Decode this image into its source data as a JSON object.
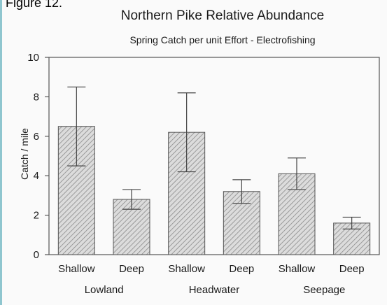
{
  "figure": {
    "label": "Figure 12."
  },
  "colors": {
    "bar_fill": "#dcdcdc",
    "hatch": "#8a8a8a",
    "axis": "#555555",
    "left_rule": "#8fc6cf"
  },
  "chart_data": {
    "type": "bar",
    "title": "Northern Pike Relative Abundance",
    "subtitle": "Spring Catch per unit Effort - Electrofishing",
    "xlabel": "",
    "ylabel": "Catch / mile",
    "ylim": [
      0,
      10
    ],
    "yticks": [
      0,
      2,
      4,
      6,
      8,
      10
    ],
    "grid": false,
    "categories": [
      "Shallow",
      "Deep",
      "Shallow",
      "Deep",
      "Shallow",
      "Deep"
    ],
    "groups": [
      "Lowland",
      "Headwater",
      "Seepage"
    ],
    "values": [
      6.5,
      2.8,
      6.2,
      3.2,
      4.1,
      1.6
    ],
    "error_low": [
      4.5,
      2.3,
      4.2,
      2.6,
      3.3,
      1.3
    ],
    "error_high": [
      8.5,
      3.3,
      8.2,
      3.8,
      4.9,
      1.9
    ],
    "bar_pattern": "diagonal-hatch"
  }
}
